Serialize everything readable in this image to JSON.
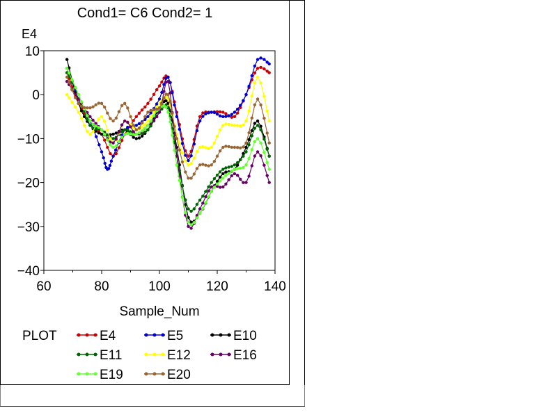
{
  "chart_data": {
    "type": "line",
    "title": "Cond1= C6  Cond2= 1",
    "xlabel": "Sample_Num",
    "ylabel": "E4",
    "xlim": [
      60,
      140
    ],
    "ylim": [
      -40,
      10
    ],
    "xticks": [
      60,
      80,
      100,
      120,
      140
    ],
    "yticks": [
      10,
      0,
      -10,
      -20,
      -30,
      -40
    ],
    "legend_title": "PLOT",
    "legend_placement": "bottom",
    "grid": false,
    "series": [
      {
        "name": "E4",
        "color": "#cc0000",
        "x": [
          68,
          72,
          76,
          80,
          84,
          88,
          92,
          96,
          100,
          103,
          106,
          110,
          114,
          118,
          122,
          126,
          130,
          134,
          138
        ],
        "y": [
          5,
          -2,
          -6,
          -9,
          -14,
          -9,
          -5,
          -2,
          2,
          4,
          -4,
          -14,
          -5,
          -4,
          -4,
          -5,
          0,
          6,
          5
        ]
      },
      {
        "name": "E5",
        "color": "#0000cc",
        "x": [
          68,
          72,
          76,
          80,
          82,
          84,
          88,
          92,
          96,
          100,
          103,
          106,
          110,
          114,
          118,
          122,
          126,
          130,
          134,
          138
        ],
        "y": [
          6,
          -1,
          -6,
          -13,
          -17,
          -14,
          -8,
          -7,
          -5,
          -1,
          4,
          -5,
          -15,
          -6,
          -4,
          -5,
          -4,
          0,
          8,
          7
        ]
      },
      {
        "name": "E10",
        "color": "#000000",
        "x": [
          68,
          72,
          76,
          80,
          84,
          88,
          92,
          96,
          100,
          103,
          106,
          110,
          114,
          118,
          122,
          126,
          130,
          134,
          138
        ],
        "y": [
          8,
          -2,
          -7,
          -9,
          -9,
          -8,
          -10,
          -8,
          -3,
          -2,
          -12,
          -28,
          -27,
          -22,
          -18,
          -17,
          -12,
          -6,
          -14
        ]
      },
      {
        "name": "E11",
        "color": "#006600",
        "x": [
          68,
          72,
          76,
          80,
          84,
          88,
          92,
          96,
          100,
          103,
          106,
          110,
          114,
          118,
          122,
          126,
          130,
          134,
          138
        ],
        "y": [
          5,
          0,
          -7,
          -8,
          -10,
          -8,
          -9,
          -8,
          -4,
          -3,
          -14,
          -26,
          -24,
          -20,
          -17,
          -16,
          -13,
          -7,
          -14
        ]
      },
      {
        "name": "E12",
        "color": "#ffff00",
        "x": [
          68,
          72,
          76,
          80,
          84,
          88,
          92,
          96,
          100,
          103,
          106,
          110,
          114,
          118,
          122,
          126,
          130,
          134,
          138
        ],
        "y": [
          0,
          -4,
          -9,
          -5,
          -11,
          -6,
          -8,
          -6,
          -2,
          -1,
          -9,
          -16,
          -12,
          -12,
          -7,
          -7,
          -6,
          4,
          -6
        ]
      },
      {
        "name": "E16",
        "color": "#660066",
        "x": [
          68,
          72,
          76,
          80,
          84,
          88,
          92,
          96,
          100,
          103,
          106,
          110,
          114,
          118,
          122,
          126,
          130,
          134,
          138
        ],
        "y": [
          3,
          -1,
          -5,
          -8,
          -11,
          -6,
          -9,
          -7,
          -4,
          3,
          -14,
          -30,
          -26,
          -21,
          -21,
          -18,
          -20,
          -13,
          -20
        ]
      },
      {
        "name": "E19",
        "color": "#66ff33",
        "x": [
          68,
          72,
          76,
          80,
          84,
          88,
          92,
          96,
          100,
          103,
          106,
          110,
          114,
          118,
          122,
          126,
          130,
          134,
          138
        ],
        "y": [
          6,
          0,
          -6,
          -8,
          -12,
          -9,
          -9,
          -7,
          -3,
          -4,
          -16,
          -29,
          -27,
          -22,
          -19,
          -17,
          -16,
          -10,
          -17
        ]
      },
      {
        "name": "E20",
        "color": "#996633",
        "x": [
          68,
          72,
          76,
          80,
          84,
          88,
          92,
          96,
          100,
          103,
          106,
          110,
          114,
          118,
          122,
          126,
          130,
          134,
          138
        ],
        "y": [
          4,
          -2,
          -3,
          -2,
          -6,
          -2,
          -8,
          -4,
          -3,
          0,
          -10,
          -19,
          -16,
          -16,
          -12,
          -12,
          -11,
          -1,
          -11
        ]
      }
    ]
  }
}
